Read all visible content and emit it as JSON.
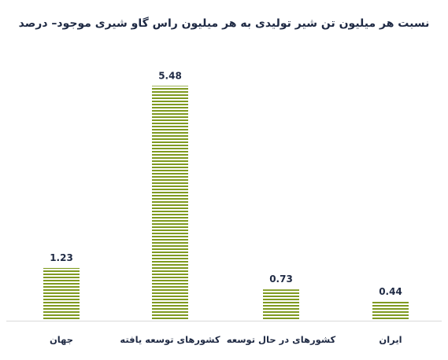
{
  "chart_data": {
    "type": "bar",
    "title": "نسبت هر میلیون تن شیر تولیدی به هر میلیون راس گاو شیری موجود– درصد",
    "categories": [
      "جهان",
      "کشورهای توسعه یافته",
      "کشورهای در حال توسعه",
      "ایران"
    ],
    "values": [
      1.23,
      5.48,
      0.73,
      0.44
    ],
    "value_labels": [
      "1.23",
      "5.48",
      "0.73",
      "0.44"
    ],
    "xlabel": "",
    "ylabel": "",
    "ylim": [
      0,
      6.2
    ],
    "grid": false,
    "legend": "none",
    "colors": {
      "bar_stripe": "#7f9a20",
      "bar_gap": "#ffffff",
      "axis": "#d9d9d9",
      "text": "#1f2a44"
    }
  }
}
